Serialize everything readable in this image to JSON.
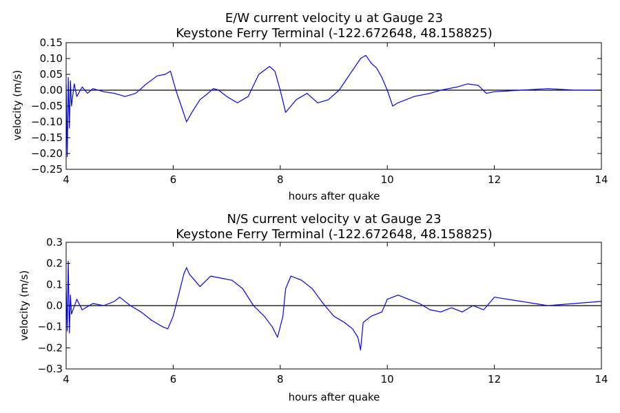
{
  "chart_data": [
    {
      "type": "line",
      "title": "E/W current velocity u at Gauge 23",
      "subtitle": "Keystone Ferry Terminal  (-122.672648, 48.158825)",
      "xlabel": "hours after quake",
      "ylabel": "velocity (m/s)",
      "xlim": [
        4,
        14
      ],
      "ylim": [
        -0.25,
        0.15
      ],
      "xticks": [
        4,
        6,
        8,
        10,
        12,
        14
      ],
      "xtick_labels": [
        "4",
        "6",
        "8",
        "10",
        "12",
        "14"
      ],
      "yticks": [
        -0.25,
        -0.2,
        -0.15,
        -0.1,
        -0.05,
        0.0,
        0.05,
        0.1,
        0.15
      ],
      "ytick_labels": [
        "−0.25",
        "−0.20",
        "−0.15",
        "−0.10",
        "−0.05",
        "0.00",
        "0.05",
        "0.10",
        "0.15"
      ],
      "grid": false,
      "reference_line_y": 0,
      "colors": {
        "series": "#0000ff",
        "reference": "#000000"
      },
      "series": [
        {
          "x": [
            4.0,
            4.02,
            4.04,
            4.06,
            4.08,
            4.1,
            4.15,
            4.2,
            4.3,
            4.4,
            4.5,
            4.7,
            4.9,
            5.1,
            5.3,
            5.5,
            5.7,
            5.85,
            5.95,
            6.05,
            6.15,
            6.25,
            6.35,
            6.5,
            6.65,
            6.75,
            6.85,
            7.0,
            7.2,
            7.4,
            7.6,
            7.8,
            7.9,
            8.0,
            8.1,
            8.15,
            8.3,
            8.5,
            8.7,
            8.9,
            9.1,
            9.3,
            9.5,
            9.6,
            9.7,
            9.8,
            9.9,
            10.0,
            10.1,
            10.2,
            10.5,
            10.8,
            11.0,
            11.3,
            11.5,
            11.7,
            11.85,
            12.0,
            12.5,
            13.0,
            13.5,
            14.0
          ],
          "y": [
            0.02,
            -0.21,
            0.04,
            -0.12,
            0.03,
            -0.05,
            0.02,
            -0.02,
            0.01,
            -0.01,
            0.005,
            -0.005,
            -0.01,
            -0.02,
            -0.01,
            0.02,
            0.045,
            0.05,
            0.06,
            0.0,
            -0.05,
            -0.1,
            -0.07,
            -0.03,
            -0.01,
            0.005,
            0.0,
            -0.02,
            -0.04,
            -0.02,
            0.05,
            0.075,
            0.06,
            0.0,
            -0.07,
            -0.06,
            -0.03,
            -0.01,
            -0.04,
            -0.03,
            0.0,
            0.05,
            0.1,
            0.11,
            0.085,
            0.07,
            0.04,
            0.0,
            -0.05,
            -0.04,
            -0.02,
            -0.01,
            0.0,
            0.01,
            0.02,
            0.015,
            -0.01,
            -0.005,
            0.0,
            0.005,
            0.0,
            0.0
          ]
        }
      ]
    },
    {
      "type": "line",
      "title": "N/S current velocity v at Gauge 23",
      "subtitle": "Keystone Ferry Terminal  (-122.672648, 48.158825)",
      "xlabel": "hours after quake",
      "ylabel": "velocity (m/s)",
      "xlim": [
        4,
        14
      ],
      "ylim": [
        -0.3,
        0.3
      ],
      "xticks": [
        4,
        6,
        8,
        10,
        12,
        14
      ],
      "xtick_labels": [
        "4",
        "6",
        "8",
        "10",
        "12",
        "14"
      ],
      "yticks": [
        -0.3,
        -0.2,
        -0.1,
        0.0,
        0.1,
        0.2,
        0.3
      ],
      "ytick_labels": [
        "−0.3",
        "−0.2",
        "−0.1",
        "0.0",
        "0.1",
        "0.2",
        "0.3"
      ],
      "grid": false,
      "reference_line_y": 0,
      "colors": {
        "series": "#0000ff",
        "reference": "#000000"
      },
      "series": [
        {
          "x": [
            4.0,
            4.02,
            4.04,
            4.06,
            4.08,
            4.1,
            4.2,
            4.3,
            4.5,
            4.7,
            4.9,
            5.0,
            5.2,
            5.4,
            5.6,
            5.8,
            5.9,
            6.0,
            6.1,
            6.2,
            6.25,
            6.3,
            6.4,
            6.5,
            6.7,
            6.9,
            7.1,
            7.3,
            7.5,
            7.7,
            7.85,
            7.95,
            8.05,
            8.1,
            8.2,
            8.4,
            8.6,
            8.8,
            9.0,
            9.2,
            9.35,
            9.45,
            9.5,
            9.55,
            9.7,
            9.9,
            10.0,
            10.2,
            10.4,
            10.6,
            10.8,
            11.0,
            11.2,
            11.4,
            11.6,
            11.8,
            12.0,
            12.5,
            13.0,
            13.5,
            14.0
          ],
          "y": [
            0.1,
            -0.12,
            0.21,
            -0.13,
            0.05,
            -0.04,
            0.03,
            -0.02,
            0.01,
            0.0,
            0.02,
            0.04,
            0.0,
            -0.03,
            -0.07,
            -0.1,
            -0.11,
            -0.05,
            0.05,
            0.15,
            0.18,
            0.15,
            0.12,
            0.09,
            0.14,
            0.13,
            0.12,
            0.08,
            0.0,
            -0.05,
            -0.1,
            -0.15,
            -0.05,
            0.08,
            0.14,
            0.12,
            0.08,
            0.01,
            -0.05,
            -0.08,
            -0.11,
            -0.15,
            -0.21,
            -0.08,
            -0.05,
            -0.03,
            0.03,
            0.05,
            0.03,
            0.01,
            -0.02,
            -0.03,
            -0.01,
            -0.03,
            0.0,
            -0.02,
            0.04,
            0.02,
            0.0,
            0.01,
            0.02
          ]
        }
      ]
    }
  ]
}
